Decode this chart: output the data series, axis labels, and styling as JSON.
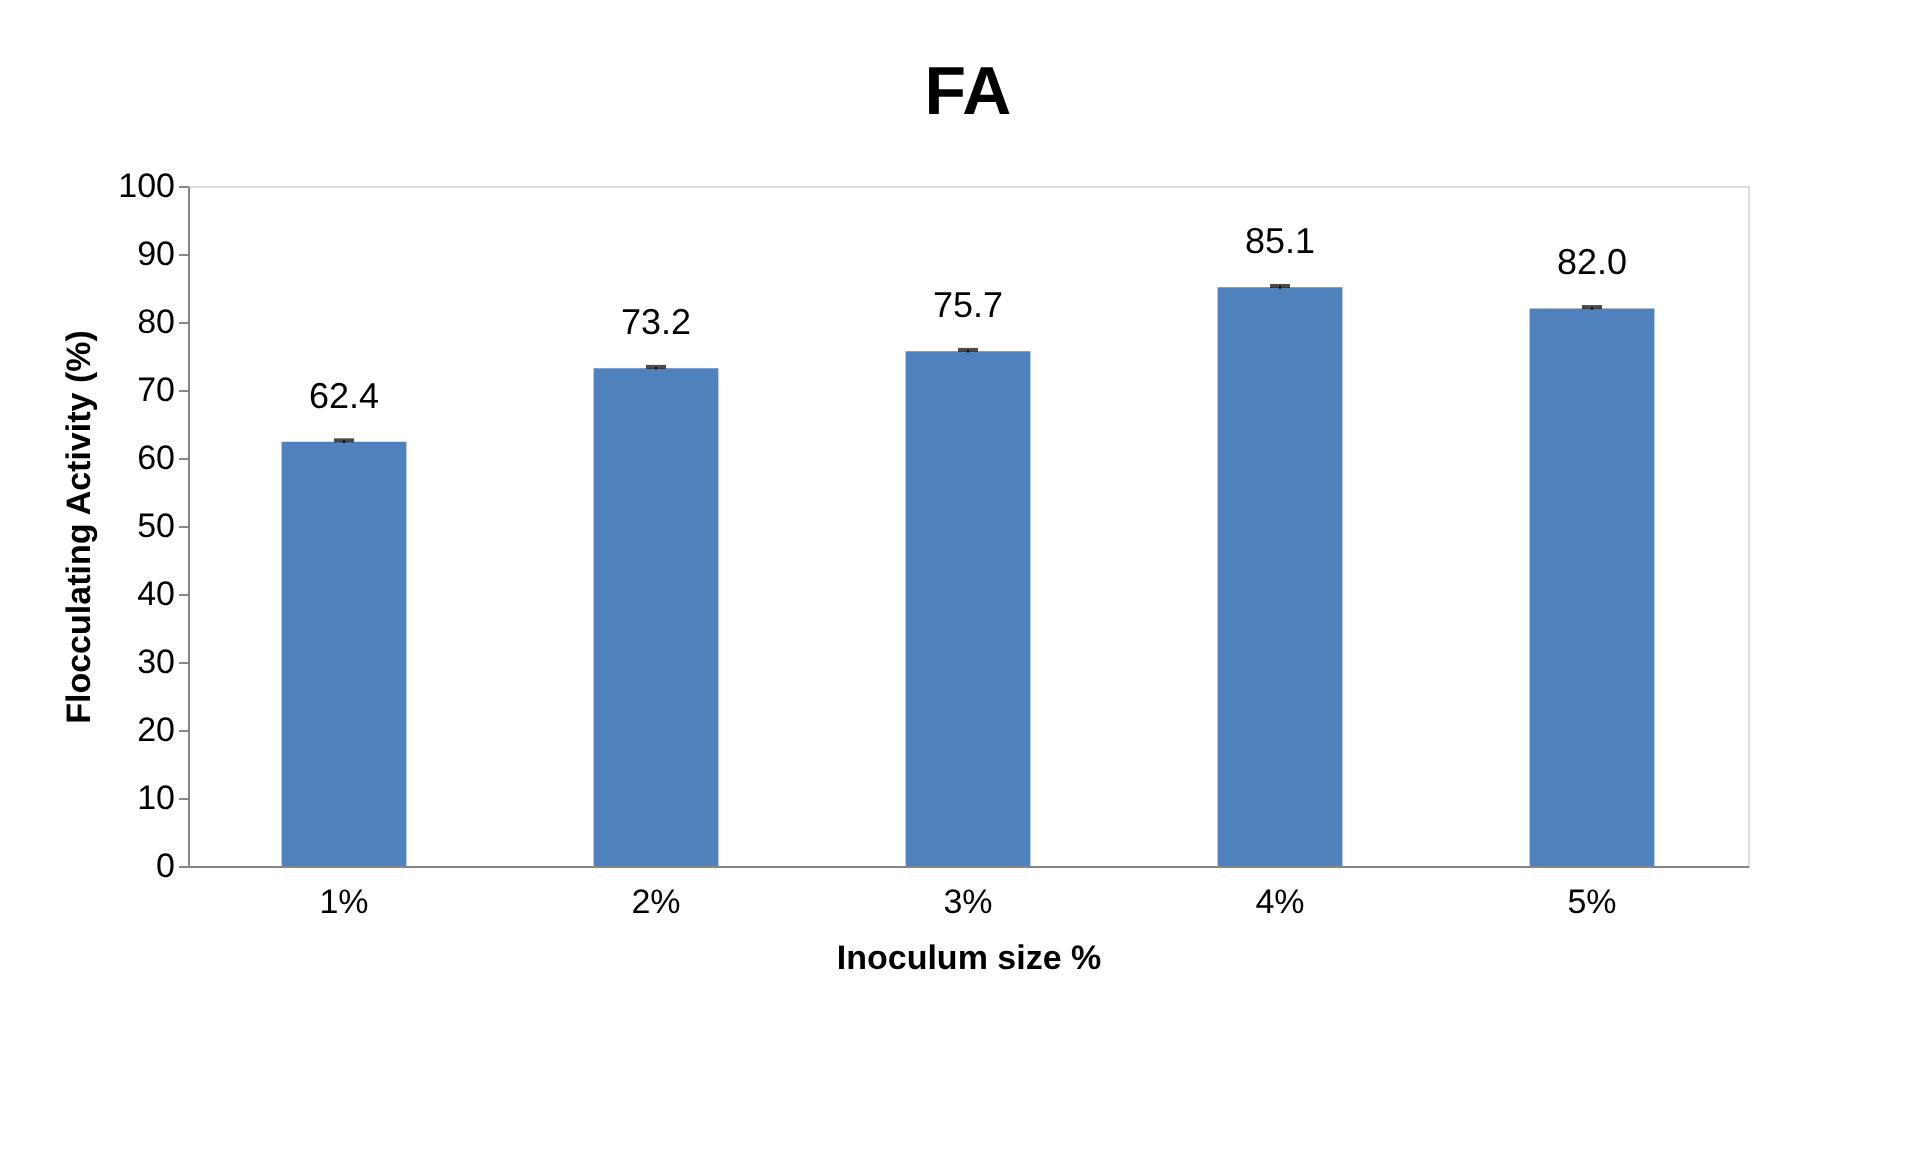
{
  "chart_data": {
    "type": "bar",
    "title": "FA",
    "xlabel": "Inoculum size %",
    "ylabel": "Flocculating Activity (%)",
    "categories": [
      "1%",
      "2%",
      "3%",
      "4%",
      "5%"
    ],
    "values": [
      62.4,
      73.2,
      75.7,
      85.1,
      82.0
    ],
    "value_labels": [
      "62.4",
      "73.2",
      "75.7",
      "85.1",
      "82.0"
    ],
    "errors": [
      0.2,
      0.2,
      0.2,
      0.2,
      0.2
    ],
    "color": "#4f81bd",
    "ylim": [
      0,
      100
    ],
    "yticks": [
      0,
      10,
      20,
      30,
      40,
      50,
      60,
      70,
      80,
      90,
      100
    ],
    "grid": false
  }
}
